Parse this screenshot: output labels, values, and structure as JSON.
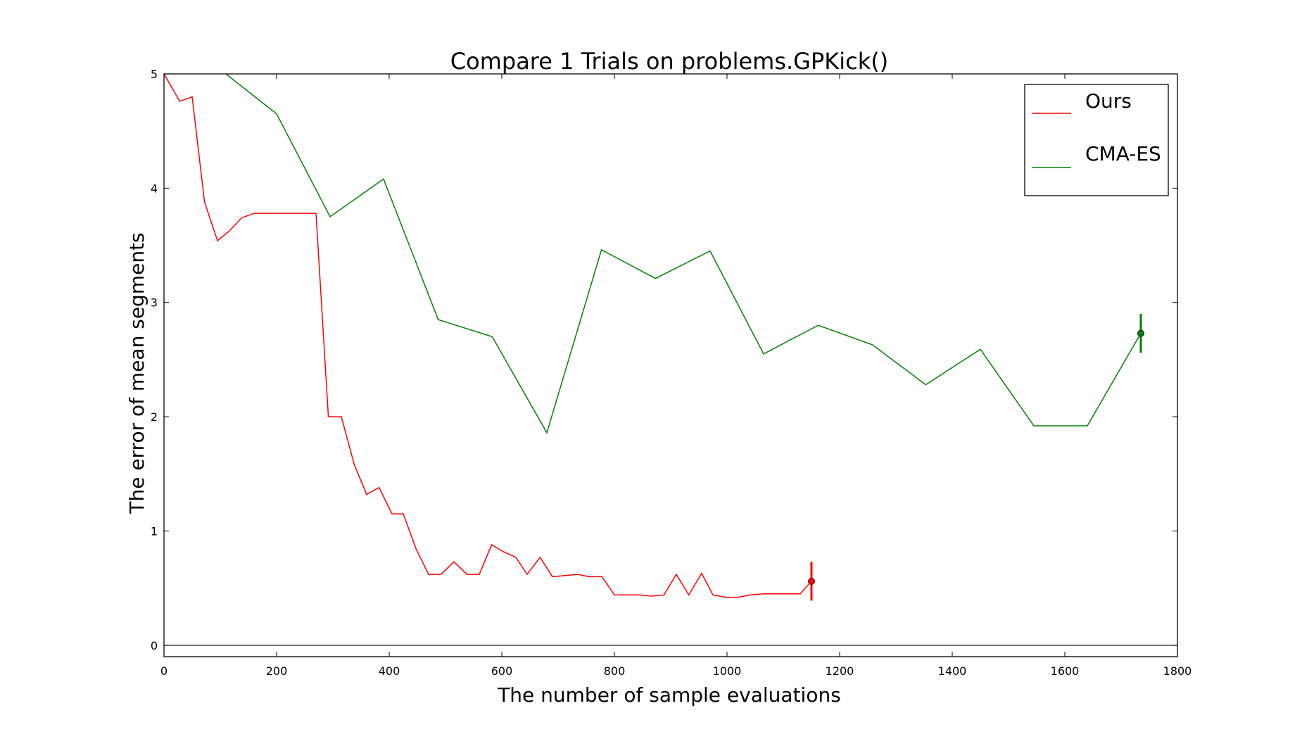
{
  "chart_data": {
    "type": "line",
    "title": "Compare 1 Trials on problems.GPKick()",
    "xlabel": "The number of sample evaluations",
    "ylabel": "The error of mean segments",
    "xlim": [
      0,
      1800
    ],
    "ylim": [
      -0.1,
      5
    ],
    "xticks": [
      0,
      200,
      400,
      600,
      800,
      1000,
      1200,
      1400,
      1600,
      1800
    ],
    "yticks": [
      0,
      1,
      2,
      3,
      4,
      5
    ],
    "grid": false,
    "legend_position": "top-right",
    "zero_line": true,
    "series": [
      {
        "name": "Ours",
        "color": "#ff0000",
        "x": [
          0,
          28,
          50,
          72,
          95,
          115,
          138,
          160,
          182,
          205,
          225,
          248,
          270,
          292,
          315,
          338,
          360,
          382,
          405,
          425,
          448,
          470,
          492,
          515,
          538,
          560,
          582,
          602,
          625,
          645,
          668,
          690,
          712,
          735,
          755,
          778,
          800,
          822,
          845,
          865,
          888,
          910,
          932,
          955,
          975,
          998,
          1020,
          1042,
          1065,
          1085,
          1108,
          1130,
          1150
        ],
        "y": [
          5.0,
          4.76,
          4.8,
          3.88,
          3.54,
          3.62,
          3.74,
          3.78,
          3.78,
          3.78,
          3.78,
          3.78,
          3.78,
          2.0,
          2.0,
          1.58,
          1.32,
          1.38,
          1.15,
          1.15,
          0.84,
          0.62,
          0.62,
          0.73,
          0.62,
          0.62,
          0.88,
          0.82,
          0.77,
          0.62,
          0.77,
          0.6,
          0.61,
          0.62,
          0.6,
          0.6,
          0.44,
          0.44,
          0.44,
          0.43,
          0.44,
          0.62,
          0.44,
          0.63,
          0.44,
          0.42,
          0.42,
          0.44,
          0.45,
          0.45,
          0.45,
          0.45,
          0.56
        ],
        "end_point": {
          "x": 1150,
          "y": 0.56,
          "err_low": 0.39,
          "err_high": 0.73
        }
      },
      {
        "name": "CMA-ES",
        "color": "#008000",
        "x": [
          110,
          200,
          295,
          390,
          487,
          583,
          680,
          777,
          873,
          970,
          1065,
          1162,
          1258,
          1353,
          1450,
          1545,
          1640,
          1735
        ],
        "y": [
          5.0,
          4.65,
          3.75,
          4.08,
          2.85,
          2.7,
          1.86,
          3.46,
          3.21,
          3.45,
          2.55,
          2.8,
          2.63,
          2.28,
          2.59,
          1.92,
          1.92,
          2.73
        ],
        "end_point": {
          "x": 1735,
          "y": 2.73,
          "err_low": 2.56,
          "err_high": 2.9
        }
      }
    ]
  }
}
